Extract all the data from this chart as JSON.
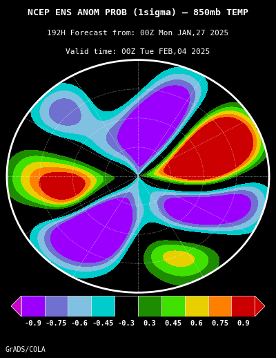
{
  "title_line1": "NCEP ENS ANOM PROB (1sigma) – 850mb TEMP",
  "title_line2": "192H Forecast from: 00Z Mon JAN,27 2025",
  "title_line3": "Valid time: 00Z Tue FEB,04 2025",
  "colorbar_labels": [
    "-0.9",
    "-0.75",
    "-0.6",
    "-0.45",
    "-0.3",
    "0.3",
    "0.45",
    "0.6",
    "0.75",
    "0.9"
  ],
  "cb_block_colors": [
    "#9B00FF",
    "#7070D0",
    "#80C0E0",
    "#00CCCC",
    "#000000",
    "#1E8C00",
    "#40E000",
    "#E8D000",
    "#FF8000",
    "#CC0000"
  ],
  "cb_left_arrow_color": "#CC00CC",
  "cb_right_arrow_color": "#CC0000",
  "background_color": "#000000",
  "text_color": "#ffffff",
  "credit_text": "GrADS/COLA",
  "fig_width": 4.0,
  "fig_height": 5.18,
  "dpi": 100,
  "title1_fontsize": 9.5,
  "title23_fontsize": 8.0,
  "label_fontsize": 7.5,
  "credit_fontsize": 7.0
}
